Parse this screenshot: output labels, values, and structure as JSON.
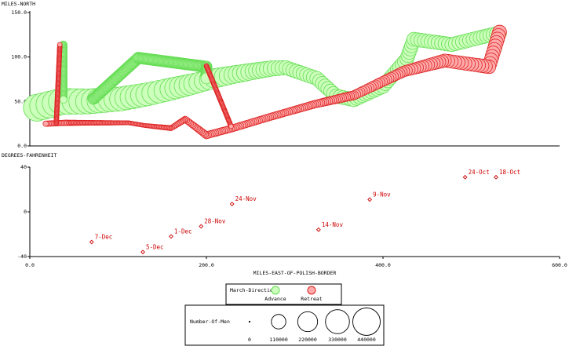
{
  "chart_data": [
    {
      "type": "line",
      "title": "",
      "ylabel": "MILES-NORTH",
      "xlabel": "",
      "xlim": [
        0,
        600
      ],
      "ylim": [
        0,
        150
      ],
      "yticks": [
        "0.0",
        "50.0",
        "100.0",
        "150.0"
      ],
      "series": [
        {
          "name": "Advance",
          "color": "#66dd55",
          "fill": "#ccffbb",
          "size_by": "Number-Of-Men",
          "points": [
            {
              "x": 8,
              "y": 43,
              "men": 422000
            },
            {
              "x": 36,
              "y": 50,
              "men": 400000
            },
            {
              "x": 66,
              "y": 50,
              "men": 360000
            },
            {
              "x": 104,
              "y": 53,
              "men": 330000
            },
            {
              "x": 133,
              "y": 58,
              "men": 300000
            },
            {
              "x": 160,
              "y": 64,
              "men": 280000
            },
            {
              "x": 186,
              "y": 70,
              "men": 240000
            },
            {
              "x": 209,
              "y": 76,
              "men": 210000
            },
            {
              "x": 230,
              "y": 80,
              "men": 175000
            },
            {
              "x": 253,
              "y": 84,
              "men": 145000
            },
            {
              "x": 273,
              "y": 87,
              "men": 127100
            },
            {
              "x": 290,
              "y": 88,
              "men": 100000
            },
            {
              "x": 325,
              "y": 76,
              "men": 100000
            },
            {
              "x": 347,
              "y": 56,
              "men": 100000
            },
            {
              "x": 367,
              "y": 52,
              "men": 100000
            },
            {
              "x": 380,
              "y": 58,
              "men": 100000
            },
            {
              "x": 400,
              "y": 67,
              "men": 100000
            },
            {
              "x": 427,
              "y": 98,
              "men": 100000
            },
            {
              "x": 435,
              "y": 120,
              "men": 100000
            },
            {
              "x": 478,
              "y": 114,
              "men": 100000
            },
            {
              "x": 510,
              "y": 122,
              "men": 100000
            },
            {
              "x": 532,
              "y": 127,
              "men": 100000
            }
          ],
          "branches": [
            {
              "points": [
                {
                  "x": 38,
                  "y": 114
                },
                {
                  "x": 38,
                  "y": 52
                }
              ],
              "men": 22000
            },
            {
              "x_note": "",
              "points": [
                {
                  "x": 72,
                  "y": 53
                },
                {
                  "x": 123,
                  "y": 99
                },
                {
                  "x": 200,
                  "y": 89
                },
                {
                  "x": 200,
                  "y": 76
                }
              ],
              "men": 60000
            }
          ]
        },
        {
          "name": "Retreat",
          "color": "#dd2222",
          "fill": "#ffaaaa",
          "size_by": "Number-Of-Men",
          "points": [
            {
              "x": 532,
              "y": 128,
              "men": 100000
            },
            {
              "x": 520,
              "y": 89,
              "men": 96000
            },
            {
              "x": 470,
              "y": 96,
              "men": 87000
            },
            {
              "x": 424,
              "y": 84,
              "men": 55000
            },
            {
              "x": 367,
              "y": 57,
              "men": 37000
            },
            {
              "x": 323,
              "y": 47,
              "men": 24000
            },
            {
              "x": 270,
              "y": 32,
              "men": 20000
            },
            {
              "x": 230,
              "y": 20,
              "men": 20000
            },
            {
              "x": 200,
              "y": 12,
              "men": 20000
            },
            {
              "x": 176,
              "y": 30,
              "men": 14000
            },
            {
              "x": 160,
              "y": 20,
              "men": 8000
            },
            {
              "x": 130,
              "y": 23,
              "men": 4000
            },
            {
              "x": 112,
              "y": 26,
              "men": 4000
            },
            {
              "x": 40,
              "y": 26,
              "men": 10000
            },
            {
              "x": 18,
              "y": 25,
              "men": 10000
            }
          ],
          "branches": [
            {
              "points": [
                {
                  "x": 30,
                  "y": 26
                },
                {
                  "x": 34,
                  "y": 114
                }
              ],
              "men": 6000
            },
            {
              "points": [
                {
                  "x": 200,
                  "y": 90
                },
                {
                  "x": 228,
                  "y": 22
                }
              ],
              "men": 6000
            }
          ]
        }
      ]
    },
    {
      "type": "scatter",
      "title": "",
      "ylabel": "DEGREES-FAHRENHEIT",
      "xlabel": "MILES-EAST-OF-POLISH-BORDER",
      "xlim": [
        0,
        600
      ],
      "ylim": [
        -40,
        40
      ],
      "xticks": [
        "0.0",
        "200.0",
        "400.0",
        "600.0"
      ],
      "yticks": [
        "-40",
        "0",
        "40"
      ],
      "points": [
        {
          "x": 528,
          "y": 31,
          "label": "18-Oct"
        },
        {
          "x": 493,
          "y": 31,
          "label": "24-Oct"
        },
        {
          "x": 385,
          "y": 11,
          "label": "9-Nov"
        },
        {
          "x": 327,
          "y": -16,
          "label": "14-Nov"
        },
        {
          "x": 229,
          "y": 7,
          "label": "24-Nov"
        },
        {
          "x": 194,
          "y": -13,
          "label": "28-Nov"
        },
        {
          "x": 160,
          "y": -22,
          "label": "1-Dec"
        },
        {
          "x": 128,
          "y": -36,
          "label": "5-Dec"
        },
        {
          "x": 70,
          "y": -27,
          "label": "7-Dec"
        }
      ]
    }
  ],
  "legend": {
    "title": "March-Direction",
    "items": [
      {
        "label": "Advance",
        "fill": "#ccffbb",
        "stroke": "#66dd55"
      },
      {
        "label": "Retreat",
        "fill": "#ffaaaa",
        "stroke": "#dd2222"
      }
    ]
  },
  "size_legend": {
    "title": "Number-Of-Men",
    "items": [
      {
        "label": "0",
        "men": 0
      },
      {
        "label": "110000",
        "men": 110000
      },
      {
        "label": "220000",
        "men": 220000
      },
      {
        "label": "330000",
        "men": 330000
      },
      {
        "label": "440000",
        "men": 440000
      }
    ]
  }
}
